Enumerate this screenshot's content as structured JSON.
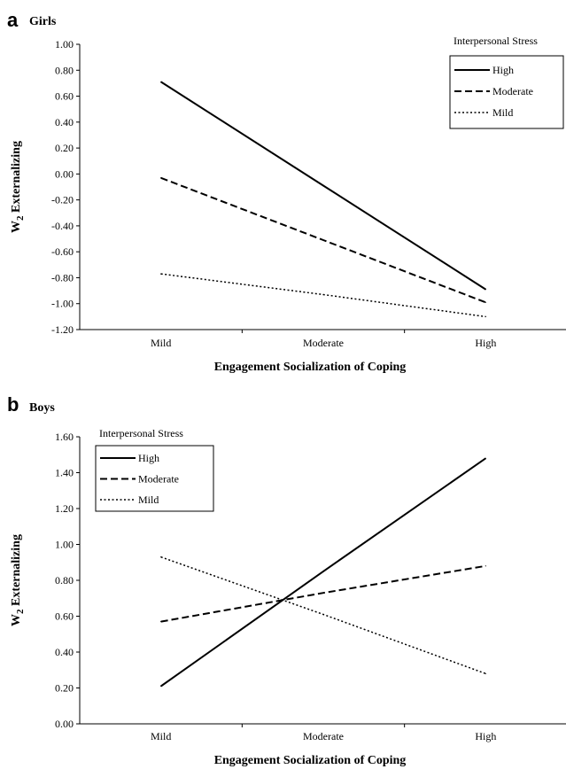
{
  "chart_data": [
    {
      "panel": "a",
      "title": "Girls",
      "type": "line",
      "xlabel": "Engagement Socialization of Coping",
      "ylabel": "W2 Externalizing",
      "ylabel_main": "W",
      "ylabel_sub": "2",
      "ylabel_rest": " Externalizing",
      "categories": [
        "Mild",
        "Moderate",
        "High"
      ],
      "ylim": [
        -1.2,
        1.0
      ],
      "yticks": [
        "1.00",
        "0.80",
        "0.60",
        "0.40",
        "0.20",
        "0.00",
        "-0.20",
        "-0.40",
        "-0.60",
        "-0.80",
        "-1.00",
        "-1.20"
      ],
      "legend_title": "Interpersonal Stress",
      "legend_position": "top-right",
      "series": [
        {
          "name": "High",
          "style": "solid",
          "values": [
            0.71,
            -0.09,
            -0.89
          ]
        },
        {
          "name": "Moderate",
          "style": "dashed",
          "values": [
            -0.03,
            -0.51,
            -0.99
          ]
        },
        {
          "name": "Mild",
          "style": "dotted",
          "values": [
            -0.77,
            -0.93,
            -1.1
          ]
        }
      ]
    },
    {
      "panel": "b",
      "title": "Boys",
      "type": "line",
      "xlabel": "Engagement Socialization of Coping",
      "ylabel": "W2 Externalizing",
      "ylabel_main": "W",
      "ylabel_sub": "2",
      "ylabel_rest": " Externalizing",
      "categories": [
        "Mild",
        "Moderate",
        "High"
      ],
      "ylim": [
        0.0,
        1.6
      ],
      "yticks": [
        "1.60",
        "1.40",
        "1.20",
        "1.00",
        "0.80",
        "0.60",
        "0.40",
        "0.20",
        "0.00"
      ],
      "legend_title": "Interpersonal Stress",
      "legend_position": "top-left",
      "series": [
        {
          "name": "High",
          "style": "solid",
          "values": [
            0.21,
            0.85,
            1.48
          ]
        },
        {
          "name": "Moderate",
          "style": "dashed",
          "values": [
            0.57,
            0.73,
            0.88
          ]
        },
        {
          "name": "Mild",
          "style": "dotted",
          "values": [
            0.93,
            0.61,
            0.28
          ]
        }
      ]
    }
  ]
}
